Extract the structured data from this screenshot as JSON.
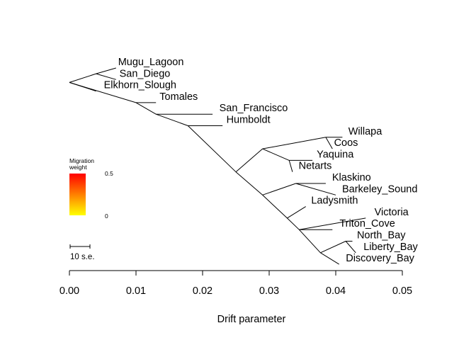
{
  "axis": {
    "title": "Drift parameter",
    "ticks": [
      0.0,
      0.01,
      0.02,
      0.03,
      0.04,
      0.05
    ],
    "tick_labels": [
      "0.00",
      "0.01",
      "0.02",
      "0.03",
      "0.04",
      "0.05"
    ],
    "range": [
      0.0,
      0.05
    ]
  },
  "tree": {
    "nodes": [
      {
        "id": "n_mugu",
        "parent": "n_scal",
        "drift": 0.007,
        "rank": 1.0,
        "label": "Mugu_Lagoon"
      },
      {
        "id": "n_sandiego",
        "parent": "n_scal",
        "drift": 0.007,
        "rank": 2.0,
        "label": "San_Diego"
      },
      {
        "id": "n_scal",
        "parent": "n_root",
        "drift": 0.004,
        "rank": 1.5,
        "label": ""
      },
      {
        "id": "n_elkhorn",
        "parent": "n_root",
        "drift": 0.004,
        "rank": 3.0,
        "label": "Elkhorn_Slough"
      },
      {
        "id": "n_root",
        "parent": null,
        "drift": 0.0,
        "rank": 2.25,
        "label": ""
      },
      {
        "id": "n_a",
        "parent": "n_root",
        "drift": 0.01,
        "rank": 4.0,
        "label": ""
      },
      {
        "id": "n_tomales",
        "parent": "n_a",
        "drift": 0.013,
        "rank": 4.0,
        "label": "Tomales"
      },
      {
        "id": "n_b",
        "parent": "n_a",
        "drift": 0.013,
        "rank": 5.0,
        "label": ""
      },
      {
        "id": "n_sanfran",
        "parent": "n_b",
        "drift": 0.0215,
        "rank": 5.0,
        "label": "San_Francisco"
      },
      {
        "id": "n_c",
        "parent": "n_b",
        "drift": 0.0178,
        "rank": 6.0,
        "label": ""
      },
      {
        "id": "n_humboldt",
        "parent": "n_c",
        "drift": 0.023,
        "rank": 6.0,
        "label": "Humboldt"
      },
      {
        "id": "n_d",
        "parent": "n_c",
        "drift": 0.025,
        "rank": 10.0,
        "label": ""
      },
      {
        "id": "n_e",
        "parent": "n_d",
        "drift": 0.029,
        "rank": 8.0,
        "label": ""
      },
      {
        "id": "n_f",
        "parent": "n_e",
        "drift": 0.0385,
        "rank": 7.0,
        "label": ""
      },
      {
        "id": "n_willapa",
        "parent": "n_f",
        "drift": 0.041,
        "rank": 7.0,
        "label": "Willapa"
      },
      {
        "id": "n_coos",
        "parent": "n_f",
        "drift": 0.0395,
        "rank": 8.0,
        "label": "Coos"
      },
      {
        "id": "n_g",
        "parent": "n_e",
        "drift": 0.033,
        "rank": 9.0,
        "label": ""
      },
      {
        "id": "n_yaquina",
        "parent": "n_g",
        "drift": 0.0365,
        "rank": 9.0,
        "label": "Yaquina"
      },
      {
        "id": "n_netarts",
        "parent": "n_g",
        "drift": 0.0335,
        "rank": 10.0,
        "label": "Netarts"
      },
      {
        "id": "n_h",
        "parent": "n_d",
        "drift": 0.029,
        "rank": 12.0,
        "label": ""
      },
      {
        "id": "n_i",
        "parent": "n_h",
        "drift": 0.034,
        "rank": 11.0,
        "label": ""
      },
      {
        "id": "n_klaskino",
        "parent": "n_i",
        "drift": 0.0385,
        "rank": 11.0,
        "label": "Klaskino"
      },
      {
        "id": "n_barkeley",
        "parent": "n_i",
        "drift": 0.04,
        "rank": 12.0,
        "label": "Barkeley_Sound"
      },
      {
        "id": "n_j",
        "parent": "n_h",
        "drift": 0.0327,
        "rank": 14.0,
        "label": ""
      },
      {
        "id": "n_ladysmith",
        "parent": "n_j",
        "drift": 0.0355,
        "rank": 13.0,
        "label": "Ladysmith"
      },
      {
        "id": "n_k",
        "parent": "n_j",
        "drift": 0.0345,
        "rank": 15.0,
        "label": ""
      },
      {
        "id": "n_victoria",
        "parent": "n_k",
        "drift": 0.0445,
        "rank": 14.0,
        "label": "Victoria"
      },
      {
        "id": "n_triton",
        "parent": "n_k",
        "drift": 0.0395,
        "rank": 15.0,
        "label": "Triton_Cove"
      },
      {
        "id": "n_l",
        "parent": "n_k",
        "drift": 0.0377,
        "rank": 17.0,
        "label": ""
      },
      {
        "id": "n_m",
        "parent": "n_l",
        "drift": 0.0415,
        "rank": 16.0,
        "label": ""
      },
      {
        "id": "n_northbay",
        "parent": "n_m",
        "drift": 0.0425,
        "rank": 16.0,
        "label": "North_Bay"
      },
      {
        "id": "n_libertybay",
        "parent": "n_m",
        "drift": 0.043,
        "rank": 17.0,
        "label": "Liberty_Bay"
      },
      {
        "id": "n_discovery",
        "parent": "n_l",
        "drift": 0.0405,
        "rank": 18.0,
        "label": "Discovery_Bay"
      }
    ]
  },
  "legend": {
    "title_line1": "Migration",
    "title_line2": "weight",
    "max_label": "0.5",
    "min_label": "0",
    "color_top": "#FF0000",
    "color_bottom": "#FFFF00"
  },
  "scale_bar": {
    "label": "10 s.e."
  }
}
